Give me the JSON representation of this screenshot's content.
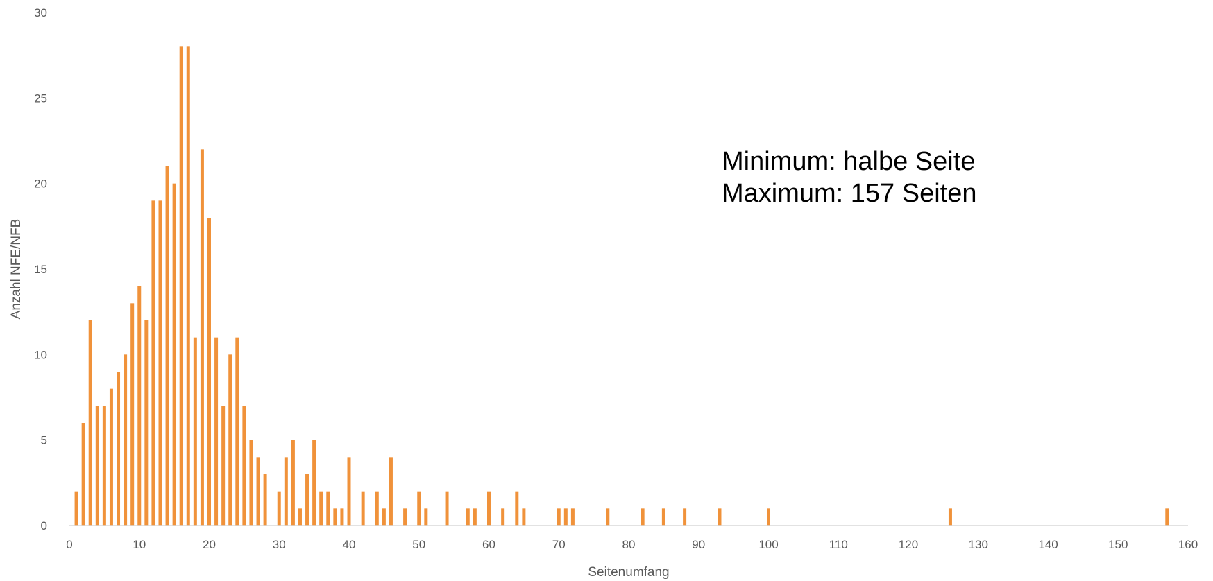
{
  "chart_data": {
    "type": "bar",
    "xlabel": "Seitenumfang",
    "ylabel": "Anzahl NFE/NFB",
    "xlim": [
      0,
      160
    ],
    "ylim": [
      0,
      30
    ],
    "x_ticks": [
      0,
      10,
      20,
      30,
      40,
      50,
      60,
      70,
      80,
      90,
      100,
      110,
      120,
      130,
      140,
      150,
      160
    ],
    "y_ticks": [
      0,
      5,
      10,
      15,
      20,
      25,
      30
    ],
    "bar_color": "#F0923A",
    "grid": false,
    "legend": "none",
    "points": [
      {
        "x": 1,
        "y": 2
      },
      {
        "x": 2,
        "y": 6
      },
      {
        "x": 3,
        "y": 12
      },
      {
        "x": 4,
        "y": 7
      },
      {
        "x": 5,
        "y": 7
      },
      {
        "x": 6,
        "y": 8
      },
      {
        "x": 7,
        "y": 9
      },
      {
        "x": 8,
        "y": 10
      },
      {
        "x": 9,
        "y": 13
      },
      {
        "x": 10,
        "y": 14
      },
      {
        "x": 11,
        "y": 12
      },
      {
        "x": 12,
        "y": 19
      },
      {
        "x": 13,
        "y": 19
      },
      {
        "x": 14,
        "y": 21
      },
      {
        "x": 15,
        "y": 20
      },
      {
        "x": 16,
        "y": 28
      },
      {
        "x": 17,
        "y": 28
      },
      {
        "x": 18,
        "y": 11
      },
      {
        "x": 19,
        "y": 22
      },
      {
        "x": 20,
        "y": 18
      },
      {
        "x": 21,
        "y": 11
      },
      {
        "x": 22,
        "y": 7
      },
      {
        "x": 23,
        "y": 10
      },
      {
        "x": 24,
        "y": 11
      },
      {
        "x": 25,
        "y": 7
      },
      {
        "x": 26,
        "y": 5
      },
      {
        "x": 27,
        "y": 4
      },
      {
        "x": 28,
        "y": 3
      },
      {
        "x": 30,
        "y": 2
      },
      {
        "x": 31,
        "y": 4
      },
      {
        "x": 32,
        "y": 5
      },
      {
        "x": 33,
        "y": 1
      },
      {
        "x": 34,
        "y": 3
      },
      {
        "x": 35,
        "y": 5
      },
      {
        "x": 36,
        "y": 2
      },
      {
        "x": 37,
        "y": 2
      },
      {
        "x": 38,
        "y": 1
      },
      {
        "x": 39,
        "y": 1
      },
      {
        "x": 40,
        "y": 4
      },
      {
        "x": 42,
        "y": 2
      },
      {
        "x": 44,
        "y": 2
      },
      {
        "x": 45,
        "y": 1
      },
      {
        "x": 46,
        "y": 4
      },
      {
        "x": 48,
        "y": 1
      },
      {
        "x": 50,
        "y": 2
      },
      {
        "x": 51,
        "y": 1
      },
      {
        "x": 54,
        "y": 2
      },
      {
        "x": 57,
        "y": 1
      },
      {
        "x": 58,
        "y": 1
      },
      {
        "x": 60,
        "y": 2
      },
      {
        "x": 62,
        "y": 1
      },
      {
        "x": 64,
        "y": 2
      },
      {
        "x": 65,
        "y": 1
      },
      {
        "x": 70,
        "y": 1
      },
      {
        "x": 71,
        "y": 1
      },
      {
        "x": 72,
        "y": 1
      },
      {
        "x": 77,
        "y": 1
      },
      {
        "x": 82,
        "y": 1
      },
      {
        "x": 85,
        "y": 1
      },
      {
        "x": 88,
        "y": 1
      },
      {
        "x": 93,
        "y": 1
      },
      {
        "x": 100,
        "y": 1
      },
      {
        "x": 126,
        "y": 1
      },
      {
        "x": 157,
        "y": 1
      }
    ],
    "annotations": [
      "Minimum: halbe Seite",
      "Maximum: 157 Seiten"
    ]
  }
}
